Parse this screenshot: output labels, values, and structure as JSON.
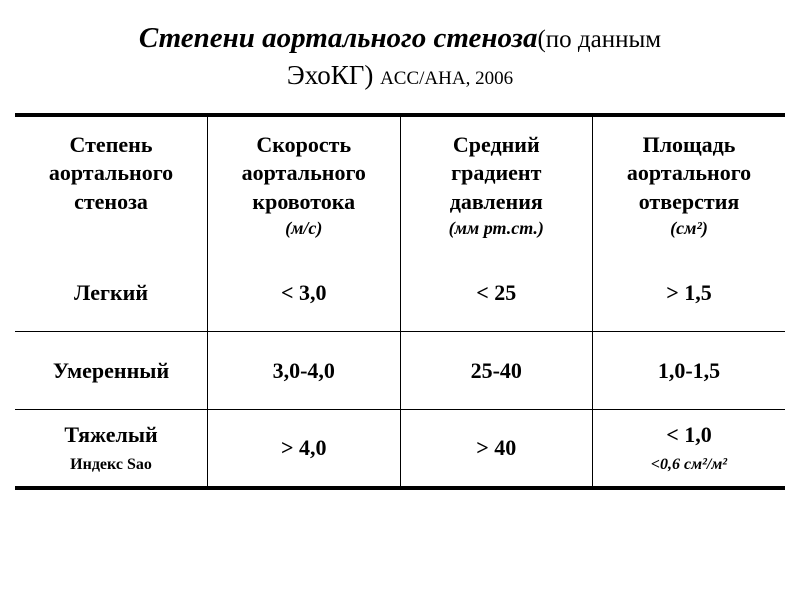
{
  "title": {
    "main": "Степени аортального стеноза",
    "sub1": "(по данным",
    "sub2": "ЭхоКГ) ",
    "sub3": "ACC/AHA, 2006"
  },
  "table": {
    "headers": [
      {
        "label": "Степень аортального стеноза",
        "unit": ""
      },
      {
        "label": "Скорость аортального кровотока",
        "unit": "(м/с)"
      },
      {
        "label": "Средний градиент давления",
        "unit": "(мм рт.ст.)"
      },
      {
        "label": "Площадь аортального отверстия",
        "unit": "(см²)"
      }
    ],
    "rows": [
      {
        "label": "Легкий",
        "velocity": "< 3,0",
        "gradient": "< 25",
        "area": "> 1,5",
        "index_label": "",
        "index_val": ""
      },
      {
        "label": "Умеренный",
        "velocity": "3,0-4,0",
        "gradient": "25-40",
        "area": "1,0-1,5",
        "index_label": "",
        "index_val": ""
      },
      {
        "label": "Тяжелый",
        "velocity": "> 4,0",
        "gradient": "> 40",
        "area": "< 1,0",
        "index_label": "Индекс Sao",
        "index_val": "<0,6 см²/м²"
      }
    ]
  },
  "styling": {
    "background": "#ffffff",
    "text_color": "#000000",
    "border_color": "#000000",
    "title_main_fontsize": 29,
    "title_sub_fontsize": 25,
    "header_fontsize": 22,
    "unit_fontsize": 18,
    "cell_fontsize": 22,
    "index_fontsize": 16,
    "font_family": "Times New Roman"
  }
}
